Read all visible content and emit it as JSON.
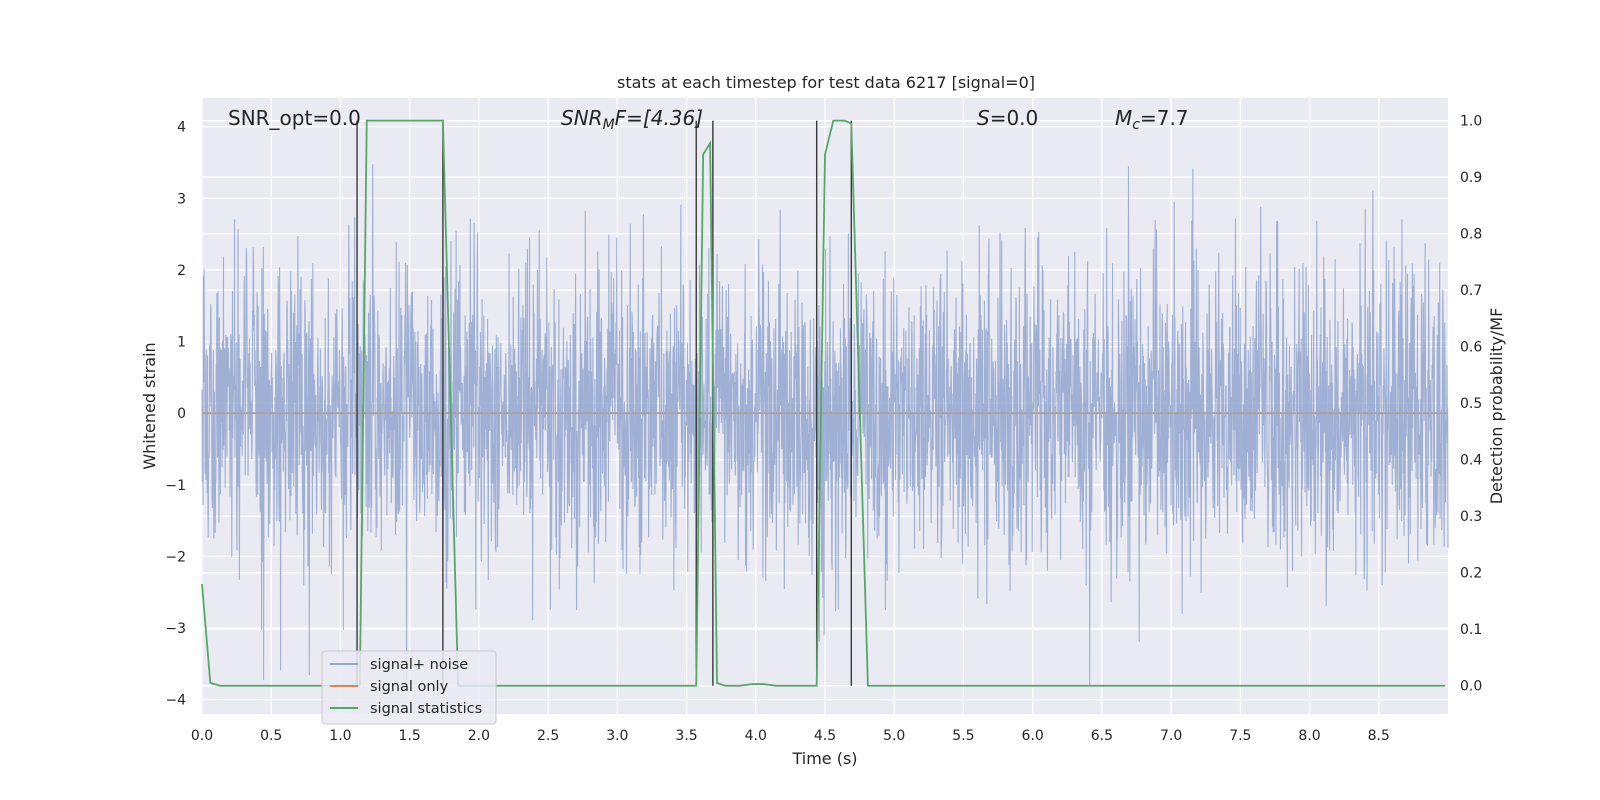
{
  "chart_data": {
    "type": "line",
    "title": "stats at each timestep for test data 6217 [signal=0]",
    "xlabel": "Time (s)",
    "ylabel_left": "Whitened strain",
    "ylabel_right": "Detection probability/MF",
    "xlim": [
      0.0,
      9.0
    ],
    "ylim_left": [
      -4.2,
      4.4
    ],
    "ylim_right": [
      -0.05,
      1.04
    ],
    "xticks": [
      "0.0",
      "0.5",
      "1.0",
      "1.5",
      "2.0",
      "2.5",
      "3.0",
      "3.5",
      "4.0",
      "4.5",
      "5.0",
      "5.5",
      "6.0",
      "6.5",
      "7.0",
      "7.5",
      "8.0",
      "8.5"
    ],
    "yticks_left": [
      "4",
      "3",
      "2",
      "1",
      "0",
      "−1",
      "−2",
      "−3",
      "−4"
    ],
    "yticks_right": [
      "1.0",
      "0.9",
      "0.8",
      "0.7",
      "0.6",
      "0.5",
      "0.4",
      "0.3",
      "0.2",
      "0.1",
      "0.0"
    ],
    "grid": true,
    "legend_position": "lower-left",
    "annotations": {
      "snr_opt": "SNR_opt=0.0",
      "snr_mf_main": "SNR",
      "snr_mf_sub": "M",
      "snr_mf_tail": "F=[4.36]",
      "s_main": "S",
      "s_tail": "=0.0",
      "mc_main": "M",
      "mc_sub": "c",
      "mc_tail": "=7.7"
    },
    "series": [
      {
        "name": "signal+ noise",
        "axis": "left",
        "color": "#92a6cf",
        "note": "whitened noise time series, approx. gaussian, peaks between about -3.8 and 4.0",
        "envelope_min": -3.8,
        "envelope_max": 4.0
      },
      {
        "name": "signal only",
        "axis": "left",
        "color": "#dd8452",
        "x": [
          0.0,
          9.0
        ],
        "y": [
          0.0,
          0.0
        ]
      },
      {
        "name": "signal statistics",
        "axis": "right",
        "color": "#55a868",
        "x": [
          0.0,
          0.06,
          0.13,
          1.12,
          1.14,
          1.19,
          1.74,
          1.85,
          3.55,
          3.57,
          3.62,
          3.67,
          3.72,
          3.78,
          3.88,
          3.98,
          4.05,
          4.15,
          4.42,
          4.44,
          4.5,
          4.56,
          4.64,
          4.69,
          4.81,
          8.98
        ],
        "y": [
          0.18,
          0.005,
          0.0,
          0.0,
          0.0,
          1.0,
          1.0,
          0.0,
          0.0,
          0.0,
          0.94,
          0.96,
          0.005,
          0.0,
          0.0,
          0.003,
          0.003,
          0.0,
          0.0,
          0.0,
          0.94,
          1.0,
          1.0,
          0.995,
          0.0,
          0.0
        ]
      }
    ],
    "vertical_markers": {
      "color": "#3a3a3a",
      "x": [
        1.12,
        1.74,
        3.57,
        3.69,
        4.44,
        4.69
      ]
    }
  },
  "legend": {
    "items": [
      {
        "label": "signal+ noise",
        "color": "#92a6cf"
      },
      {
        "label": "signal only",
        "color": "#dd8452"
      },
      {
        "label": "signal statistics",
        "color": "#55a868"
      }
    ]
  },
  "colors": {
    "plot_background": "#eaeaf2",
    "grid": "#ffffff"
  }
}
